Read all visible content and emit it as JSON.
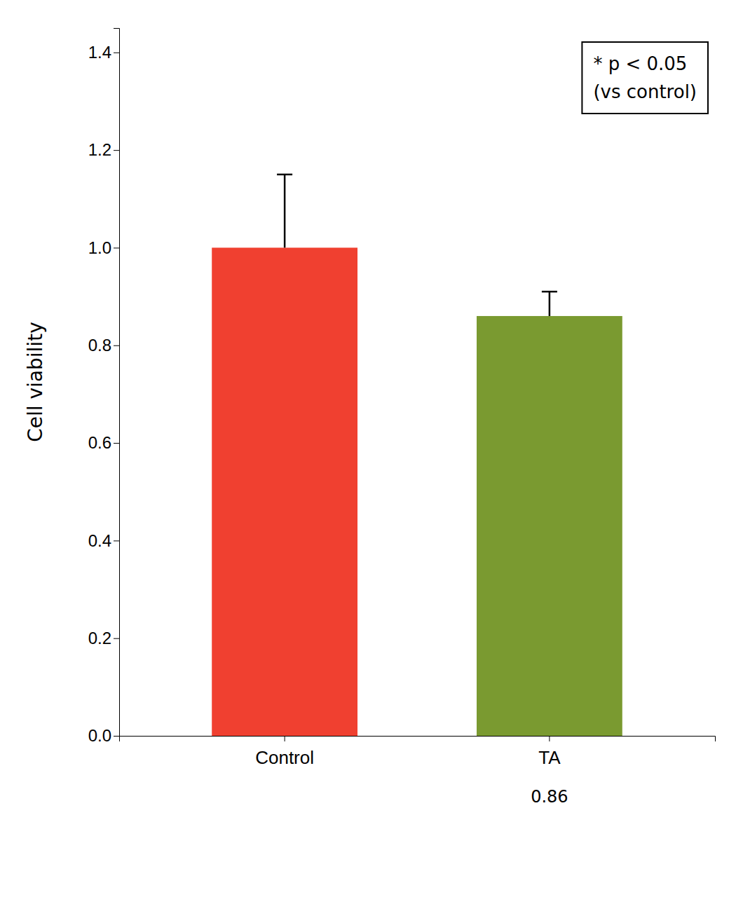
{
  "chart_data": {
    "type": "bar",
    "categories": [
      "Control",
      "TA"
    ],
    "values": [
      1.0,
      0.86
    ],
    "errors": [
      0.15,
      0.05
    ],
    "colors": [
      "#f04030",
      "#7a9a30"
    ],
    "ylabel": "Cell viability",
    "ylim": [
      0,
      1.45
    ],
    "yticks": [
      {
        "value": 0.0,
        "label": "0.0"
      },
      0.2,
      0.4,
      0.6,
      0.8,
      {
        "value": 1.0,
        "label": "1.0"
      },
      1.2,
      1.4
    ],
    "grid": false,
    "annotations": [
      {
        "text": "0.86",
        "category": "TA"
      },
      {
        "text": "* p < 0.05"
      },
      {
        "text": "(vs control)"
      }
    ]
  }
}
